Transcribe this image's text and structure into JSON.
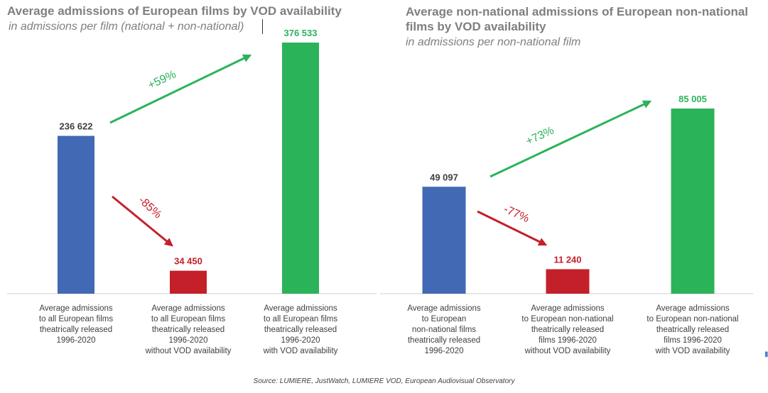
{
  "colors": {
    "blue": "#4169b4",
    "red": "#c4202a",
    "green": "#2bb35a",
    "axis": "#d0d0d0"
  },
  "chart_data": [
    {
      "type": "bar",
      "title": "Average admissions of European films by VOD availability",
      "subtitle": "in admissions per film (national + non-national)",
      "categories": [
        "Average admissions\nto all European films\ntheatrically released\n1996-2020",
        "Average admissions\nto all European films\ntheatrically released\n1996-2020\nwithout VOD availability",
        "Average admissions\nto all European films\ntheatrically released\n1996-2020\nwith VOD availability"
      ],
      "values": [
        236622,
        34450,
        376533
      ],
      "value_labels": [
        "236 622",
        "34 450",
        "376 533"
      ],
      "annotations": [
        {
          "text": "+59%",
          "from": 0,
          "to": 2,
          "color": "green"
        },
        {
          "text": "-85%",
          "from": 0,
          "to": 1,
          "color": "red"
        }
      ],
      "ylim": [
        0,
        376533
      ]
    },
    {
      "type": "bar",
      "title": "Average non-national admissions of European non-national films by VOD availability",
      "subtitle": "in admissions per non-national film",
      "categories": [
        "Average admissions\nto European\nnon-national films\ntheatrically released\n1996-2020",
        "Average admissions\nto European non-national\ntheatrically released\nfilms 1996-2020\nwithout VOD availability",
        "Average admissions\nto European non-national\ntheatrically released\nfilms 1996-2020\nwith VOD availability"
      ],
      "values": [
        49097,
        11240,
        85005
      ],
      "value_labels": [
        "49 097",
        "11 240",
        "85 005"
      ],
      "annotations": [
        {
          "text": "+73%",
          "from": 0,
          "to": 2,
          "color": "green"
        },
        {
          "text": "-77%",
          "from": 0,
          "to": 1,
          "color": "red"
        }
      ],
      "ylim": [
        0,
        85005
      ]
    }
  ],
  "source": "Source: LUMIERE, JustWatch, LUMIERE VOD, European Audiovisual Observatory"
}
